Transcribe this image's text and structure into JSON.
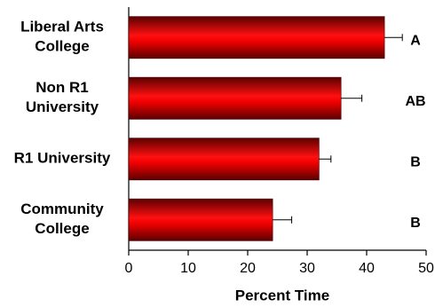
{
  "chart_data": {
    "type": "barh",
    "categories": [
      [
        "Liberal Arts",
        "College"
      ],
      [
        "Non R1",
        "University"
      ],
      [
        "R1 University"
      ],
      [
        "Community",
        "College"
      ]
    ],
    "values": [
      43,
      35.7,
      32,
      24.2
    ],
    "errors": [
      3,
      3.5,
      2,
      3.2
    ],
    "significance_labels": [
      "A",
      "AB",
      "B",
      "B"
    ],
    "color": "#e00000",
    "xlabel": "Percent Time",
    "xlim": [
      0,
      50
    ],
    "xticks": [
      0,
      10,
      20,
      30,
      40,
      50
    ]
  }
}
